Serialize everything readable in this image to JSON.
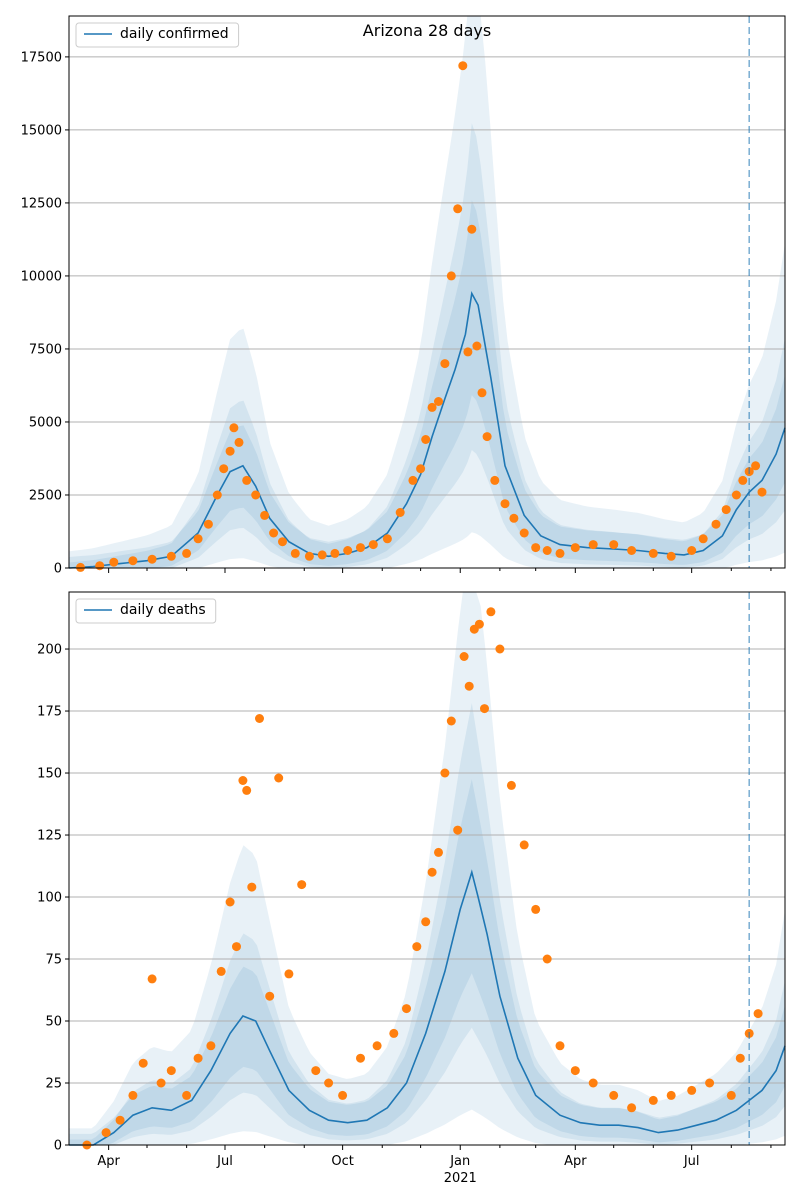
{
  "figure": {
    "title": "Arizona 28 days",
    "forecast_start": "2021-08-15",
    "colors": {
      "line": "#1f77b4",
      "points": "#ff7f0e",
      "band": "#1f77b4",
      "grid": "#b0b0b0",
      "vline": "#1f77b4"
    }
  },
  "chart_data": [
    {
      "type": "line",
      "title": "Arizona 28 days",
      "legend": {
        "label": "daily confirmed",
        "placement": "top-left"
      },
      "xlim": [
        "2020-03-01",
        "2021-09-12"
      ],
      "ylim": [
        0,
        18900
      ],
      "yticks": [
        0,
        2500,
        5000,
        7500,
        10000,
        12500,
        15000,
        17500
      ],
      "ytick_labels": [
        "0",
        "2500",
        "5000",
        "7500",
        "10000",
        "12500",
        "15000",
        "17500"
      ],
      "grid": "horizontal",
      "series": [
        {
          "name": "daily confirmed",
          "style": "line",
          "x": [
            "2020-03-01",
            "2020-03-20",
            "2020-04-10",
            "2020-05-01",
            "2020-05-20",
            "2020-06-10",
            "2020-06-25",
            "2020-07-05",
            "2020-07-15",
            "2020-07-25",
            "2020-08-05",
            "2020-08-20",
            "2020-09-05",
            "2020-09-20",
            "2020-10-05",
            "2020-10-20",
            "2020-11-05",
            "2020-11-20",
            "2020-12-01",
            "2020-12-10",
            "2020-12-20",
            "2020-12-28",
            "2021-01-05",
            "2021-01-10",
            "2021-01-15",
            "2021-01-25",
            "2021-02-05",
            "2021-02-20",
            "2021-03-05",
            "2021-03-20",
            "2021-04-10",
            "2021-05-01",
            "2021-05-20",
            "2021-06-10",
            "2021-06-25",
            "2021-07-10",
            "2021-07-25",
            "2021-08-05",
            "2021-08-15",
            "2021-08-25",
            "2021-09-05",
            "2021-09-12"
          ],
          "y": [
            0,
            50,
            150,
            250,
            400,
            1200,
            2500,
            3300,
            3500,
            2800,
            1700,
            900,
            500,
            400,
            500,
            700,
            1200,
            2200,
            3200,
            4500,
            5800,
            6800,
            8000,
            9400,
            9000,
            6500,
            3500,
            1800,
            1100,
            800,
            700,
            650,
            600,
            500,
            450,
            600,
            1100,
            2000,
            2600,
            3000,
            3900,
            4800
          ]
        },
        {
          "name": "observed",
          "style": "scatter",
          "x": [
            "2020-03-10",
            "2020-03-25",
            "2020-04-05",
            "2020-04-20",
            "2020-05-05",
            "2020-05-20",
            "2020-06-01",
            "2020-06-10",
            "2020-06-18",
            "2020-06-25",
            "2020-06-30",
            "2020-07-05",
            "2020-07-08",
            "2020-07-12",
            "2020-07-18",
            "2020-07-25",
            "2020-08-01",
            "2020-08-08",
            "2020-08-15",
            "2020-08-25",
            "2020-09-05",
            "2020-09-15",
            "2020-09-25",
            "2020-10-05",
            "2020-10-15",
            "2020-10-25",
            "2020-11-05",
            "2020-11-15",
            "2020-11-25",
            "2020-12-01",
            "2020-12-05",
            "2020-12-10",
            "2020-12-15",
            "2020-12-20",
            "2020-12-25",
            "2020-12-30",
            "2021-01-03",
            "2021-01-07",
            "2021-01-10",
            "2021-01-14",
            "2021-01-18",
            "2021-01-22",
            "2021-01-28",
            "2021-02-05",
            "2021-02-12",
            "2021-02-20",
            "2021-03-01",
            "2021-03-10",
            "2021-03-20",
            "2021-04-01",
            "2021-04-15",
            "2021-05-01",
            "2021-05-15",
            "2021-06-01",
            "2021-06-15",
            "2021-07-01",
            "2021-07-10",
            "2021-07-20",
            "2021-07-28",
            "2021-08-05",
            "2021-08-10",
            "2021-08-15",
            "2021-08-20",
            "2021-08-25"
          ],
          "y": [
            20,
            80,
            200,
            250,
            300,
            400,
            500,
            1000,
            1500,
            2500,
            3400,
            4000,
            4800,
            4300,
            3000,
            2500,
            1800,
            1200,
            900,
            500,
            400,
            450,
            500,
            600,
            700,
            800,
            1000,
            1900,
            3000,
            3400,
            4400,
            5500,
            5700,
            7000,
            10000,
            12300,
            17200,
            7400,
            11600,
            7600,
            6000,
            4500,
            3000,
            2200,
            1700,
            1200,
            700,
            600,
            500,
            700,
            800,
            800,
            600,
            500,
            400,
            600,
            1000,
            1500,
            2000,
            2500,
            3000,
            3300,
            3500,
            2600
          ]
        }
      ]
    },
    {
      "type": "line",
      "legend": {
        "label": "daily deaths",
        "placement": "top-left"
      },
      "xlim": [
        "2020-03-01",
        "2021-09-12"
      ],
      "ylim": [
        0,
        223
      ],
      "yticks": [
        0,
        25,
        50,
        75,
        100,
        125,
        150,
        175,
        200
      ],
      "ytick_labels": [
        "0",
        "25",
        "50",
        "75",
        "100",
        "125",
        "150",
        "175",
        "200"
      ],
      "xtick_labels": [
        "Apr",
        "Jul",
        "Oct",
        "Jan",
        "Apr",
        "Jul"
      ],
      "xtick_dates": [
        "2020-04-01",
        "2020-07-01",
        "2020-10-01",
        "2021-01-01",
        "2021-04-01",
        "2021-07-01"
      ],
      "xyear_label": "2021",
      "grid": "horizontal",
      "series": [
        {
          "name": "daily deaths",
          "style": "line",
          "x": [
            "2020-03-01",
            "2020-03-20",
            "2020-04-05",
            "2020-04-20",
            "2020-05-05",
            "2020-05-20",
            "2020-06-05",
            "2020-06-20",
            "2020-07-05",
            "2020-07-15",
            "2020-07-25",
            "2020-08-05",
            "2020-08-20",
            "2020-09-05",
            "2020-09-20",
            "2020-10-05",
            "2020-10-20",
            "2020-11-05",
            "2020-11-20",
            "2020-12-05",
            "2020-12-20",
            "2021-01-01",
            "2021-01-10",
            "2021-01-15",
            "2021-01-22",
            "2021-02-01",
            "2021-02-15",
            "2021-03-01",
            "2021-03-20",
            "2021-04-05",
            "2021-04-20",
            "2021-05-05",
            "2021-05-20",
            "2021-06-05",
            "2021-06-20",
            "2021-07-05",
            "2021-07-20",
            "2021-08-05",
            "2021-08-15",
            "2021-08-25",
            "2021-09-05",
            "2021-09-12"
          ],
          "y": [
            0,
            0,
            5,
            12,
            15,
            14,
            18,
            30,
            45,
            52,
            50,
            38,
            22,
            14,
            10,
            9,
            10,
            15,
            25,
            45,
            70,
            95,
            110,
            100,
            85,
            60,
            35,
            20,
            12,
            9,
            8,
            8,
            7,
            5,
            6,
            8,
            10,
            14,
            18,
            22,
            30,
            40
          ]
        },
        {
          "name": "observed",
          "style": "scatter",
          "x": [
            "2020-03-15",
            "2020-03-30",
            "2020-04-10",
            "2020-04-20",
            "2020-04-28",
            "2020-05-05",
            "2020-05-12",
            "2020-05-20",
            "2020-06-01",
            "2020-06-10",
            "2020-06-20",
            "2020-06-28",
            "2020-07-05",
            "2020-07-10",
            "2020-07-15",
            "2020-07-18",
            "2020-07-22",
            "2020-07-28",
            "2020-08-05",
            "2020-08-12",
            "2020-08-20",
            "2020-08-30",
            "2020-09-10",
            "2020-09-20",
            "2020-10-01",
            "2020-10-15",
            "2020-10-28",
            "2020-11-10",
            "2020-11-20",
            "2020-11-28",
            "2020-12-05",
            "2020-12-10",
            "2020-12-15",
            "2020-12-20",
            "2020-12-25",
            "2020-12-30",
            "2021-01-04",
            "2021-01-08",
            "2021-01-12",
            "2021-01-16",
            "2021-01-20",
            "2021-01-25",
            "2021-02-01",
            "2021-02-10",
            "2021-02-20",
            "2021-03-01",
            "2021-03-10",
            "2021-03-20",
            "2021-04-01",
            "2021-04-15",
            "2021-05-01",
            "2021-05-15",
            "2021-06-01",
            "2021-06-15",
            "2021-07-01",
            "2021-07-15",
            "2021-08-01",
            "2021-08-08",
            "2021-08-15",
            "2021-08-22"
          ],
          "y": [
            0,
            5,
            10,
            20,
            33,
            67,
            25,
            30,
            20,
            35,
            40,
            70,
            98,
            80,
            147,
            143,
            104,
            172,
            60,
            148,
            69,
            105,
            30,
            25,
            20,
            35,
            40,
            45,
            55,
            80,
            90,
            110,
            118,
            150,
            171,
            127,
            197,
            185,
            208,
            210,
            176,
            215,
            200,
            145,
            121,
            95,
            75,
            40,
            30,
            25,
            20,
            15,
            18,
            20,
            22,
            25,
            20,
            35,
            45,
            53
          ]
        }
      ]
    }
  ]
}
